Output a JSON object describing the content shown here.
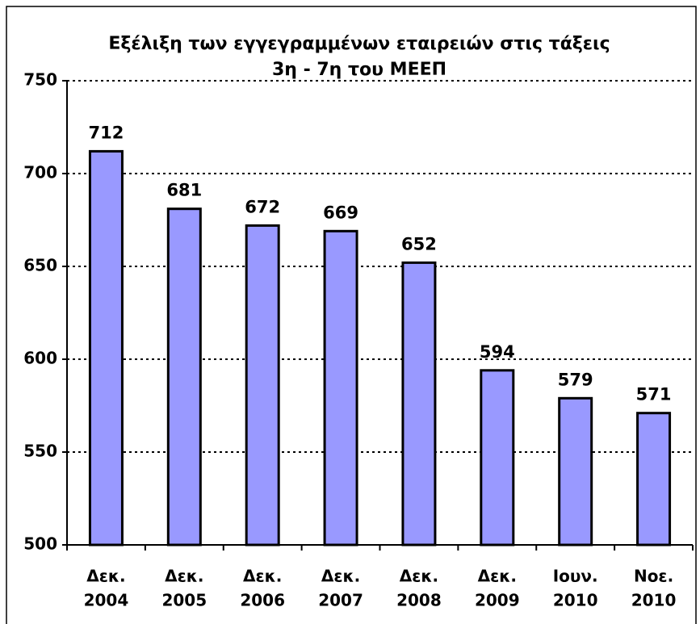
{
  "chart_data": {
    "type": "bar",
    "title": [
      "Εξέλιξη των εγγεγραμμένων εταιρειών στις τάξεις",
      "3η - 7η του ΜΕΕΠ"
    ],
    "categories": [
      [
        "Δεκ.",
        "2004"
      ],
      [
        "Δεκ.",
        "2005"
      ],
      [
        "Δεκ.",
        "2006"
      ],
      [
        "Δεκ.",
        "2007"
      ],
      [
        "Δεκ.",
        "2008"
      ],
      [
        "Δεκ.",
        "2009"
      ],
      [
        "Ιουν.",
        "2010"
      ],
      [
        "Νοε.",
        "2010"
      ]
    ],
    "values": [
      712,
      681,
      672,
      669,
      652,
      594,
      579,
      571
    ],
    "color": "#9999ff",
    "ylim": [
      500,
      750
    ],
    "yticks": [
      500,
      550,
      600,
      650,
      700,
      750
    ],
    "grid": true
  }
}
